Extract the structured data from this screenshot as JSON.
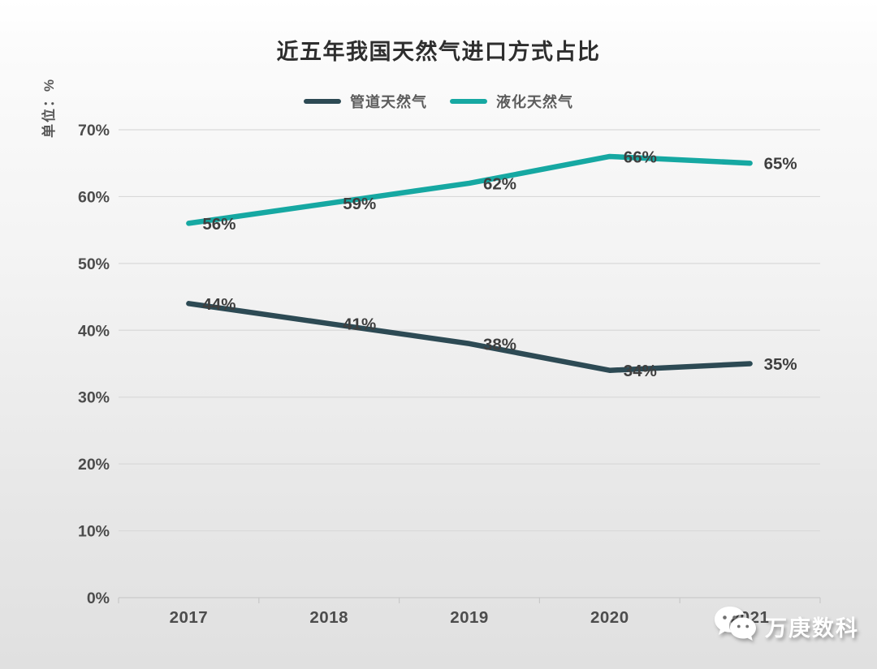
{
  "title": "近五年我国天然气进口方式占比",
  "y_unit_label": "单位：%",
  "legend": [
    {
      "name": "管道天然气",
      "color": "#2d4a54"
    },
    {
      "name": "液化天然气",
      "color": "#16a8a2"
    }
  ],
  "watermark": {
    "name": "万庚数科",
    "icon": "wechat-icon"
  },
  "chart_data": {
    "type": "line",
    "x": [
      "2017",
      "2018",
      "2019",
      "2020",
      "2021"
    ],
    "series": [
      {
        "name": "管道天然气",
        "color": "#2d4a54",
        "values": [
          44,
          41,
          38,
          34,
          35
        ],
        "labels": [
          "44%",
          "41%",
          "38%",
          "34%",
          "35%"
        ]
      },
      {
        "name": "液化天然气",
        "color": "#16a8a2",
        "values": [
          56,
          59,
          62,
          66,
          65
        ],
        "labels": [
          "56%",
          "59%",
          "62%",
          "66%",
          "65%"
        ]
      }
    ],
    "title": "近五年我国天然气进口方式占比",
    "ylabel": "单位：%",
    "xlabel": "",
    "ylim": [
      0,
      70
    ],
    "ytick_step": 10,
    "ytick_labels": [
      "0%",
      "10%",
      "20%",
      "30%",
      "40%",
      "50%",
      "60%",
      "70%"
    ],
    "grid": true,
    "legend_position": "top"
  }
}
